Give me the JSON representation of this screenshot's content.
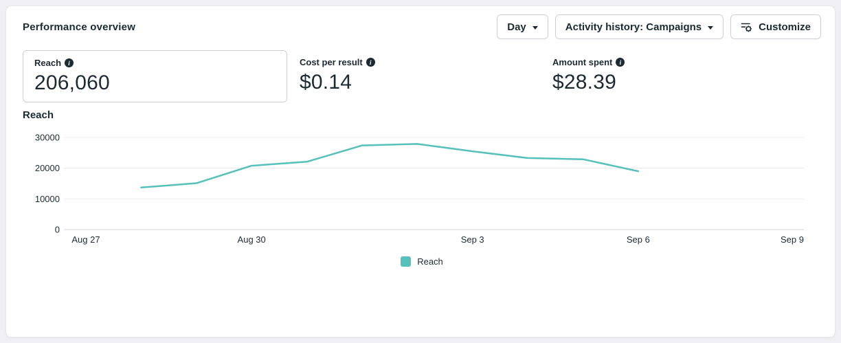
{
  "header": {
    "title": "Performance overview",
    "controls": [
      {
        "label": "Day",
        "type": "dropdown"
      },
      {
        "label": "Activity history: Campaigns",
        "type": "dropdown"
      },
      {
        "label": "Customize",
        "type": "button",
        "icon": "settings-sliders-icon"
      }
    ]
  },
  "metrics": [
    {
      "label": "Reach",
      "value": "206,060",
      "selected": true
    },
    {
      "label": "Cost per result",
      "value": "$0.14",
      "selected": false
    },
    {
      "label": "Amount spent",
      "value": "$28.39",
      "selected": false
    }
  ],
  "colors": {
    "accent_teal": "#56c0ba",
    "text_primary": "#1c2b33",
    "gridline": "#e7e9ec",
    "axis_zero_line": "#ced2d6",
    "page_background": "#f0f0f4",
    "card_background": "#ffffff",
    "button_border": "#ccd0d5"
  },
  "chart_data": {
    "type": "line",
    "title": "Reach",
    "xlabel": "",
    "ylabel": "Reach",
    "x": [
      "Aug 28",
      "Aug 29",
      "Aug 30",
      "Aug 31",
      "Sep 1",
      "Sep 2",
      "Sep 3",
      "Sep 4",
      "Sep 5",
      "Sep 6"
    ],
    "x_day_offsets": [
      1,
      2,
      3,
      4,
      5,
      6,
      7,
      8,
      9,
      10
    ],
    "series": [
      {
        "name": "Reach",
        "values": [
          13700,
          15100,
          20800,
          22100,
          27400,
          27900,
          25500,
          23300,
          22900,
          19000
        ]
      }
    ],
    "x_axis_ticks": [
      {
        "label": "Aug 27",
        "day": 0
      },
      {
        "label": "Aug 30",
        "day": 3
      },
      {
        "label": "Sep 3",
        "day": 7
      },
      {
        "label": "Sep 6",
        "day": 10
      },
      {
        "label": "Sep 9",
        "day": 13,
        "align": "end"
      }
    ],
    "x_axis_range_days": 13,
    "y_ticks": [
      0,
      10000,
      20000,
      30000
    ],
    "ylim": [
      0,
      30000
    ],
    "grid": "horizontal",
    "legend": {
      "position": "bottom-center",
      "entries": [
        "Reach"
      ]
    },
    "line_color": "#56c0ba"
  }
}
